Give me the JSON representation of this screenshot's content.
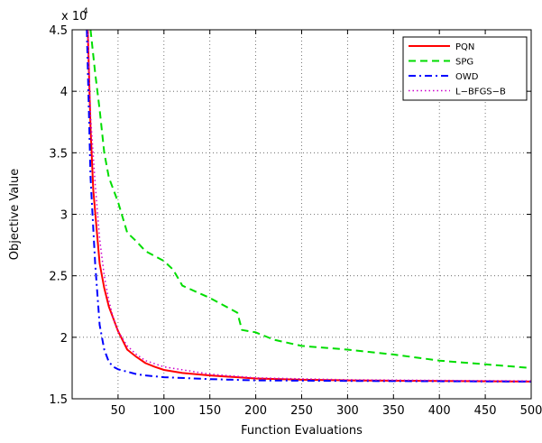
{
  "chart_data": {
    "type": "line",
    "title": "",
    "xlabel": "Function Evaluations",
    "ylabel": "Objective Value",
    "y_multiplier_label": "x 10",
    "y_multiplier_exponent": "4",
    "xlim": [
      0,
      500
    ],
    "ylim": [
      1.5,
      4.5
    ],
    "xticks": [
      50,
      100,
      150,
      200,
      250,
      300,
      350,
      400,
      450,
      500
    ],
    "xtick_labels": [
      "50",
      "100",
      "150",
      "200",
      "250",
      "300",
      "350",
      "400",
      "450",
      "500"
    ],
    "yticks": [
      1.5,
      2,
      2.5,
      3,
      3.5,
      4,
      4.5
    ],
    "ytick_labels": [
      "1.5",
      "2",
      "2.5",
      "3",
      "3.5",
      "4",
      "4.5"
    ],
    "grid": true,
    "legend_position": "top-right",
    "series": [
      {
        "name": "PQN",
        "color": "#ff0000",
        "dash": "solid",
        "x": [
          17,
          20,
          23,
          27,
          30,
          35,
          40,
          45,
          50,
          60,
          70,
          80,
          90,
          100,
          120,
          150,
          200,
          250,
          300,
          400,
          500
        ],
        "y": [
          4.5,
          3.7,
          3.2,
          2.85,
          2.6,
          2.4,
          2.25,
          2.15,
          2.05,
          1.9,
          1.84,
          1.79,
          1.76,
          1.735,
          1.71,
          1.69,
          1.665,
          1.655,
          1.65,
          1.645,
          1.64
        ]
      },
      {
        "name": "SPG",
        "color": "#00dd00",
        "dash": "dashed",
        "x": [
          20,
          25,
          30,
          35,
          40,
          50,
          60,
          70,
          80,
          100,
          110,
          120,
          150,
          180,
          185,
          200,
          220,
          250,
          300,
          350,
          400,
          450,
          500
        ],
        "y": [
          4.5,
          4.15,
          3.85,
          3.5,
          3.3,
          3.1,
          2.85,
          2.78,
          2.7,
          2.62,
          2.55,
          2.42,
          2.32,
          2.2,
          2.06,
          2.04,
          1.98,
          1.93,
          1.9,
          1.86,
          1.81,
          1.78,
          1.75
        ]
      },
      {
        "name": "OWD",
        "color": "#0000ff",
        "dash": "dashdot",
        "x": [
          16,
          20,
          25,
          30,
          35,
          40,
          45,
          50,
          60,
          70,
          80,
          100,
          150,
          200,
          300,
          500
        ],
        "y": [
          4.5,
          3.3,
          2.6,
          2.1,
          1.9,
          1.8,
          1.76,
          1.74,
          1.72,
          1.7,
          1.69,
          1.675,
          1.66,
          1.65,
          1.645,
          1.64
        ]
      },
      {
        "name": "L−BFGS−B",
        "color": "#cc00cc",
        "dash": "dotted",
        "x": [
          17,
          20,
          25,
          30,
          35,
          40,
          45,
          50,
          60,
          70,
          80,
          100,
          150,
          200,
          300,
          400,
          500
        ],
        "y": [
          4.5,
          3.8,
          3.25,
          2.8,
          2.5,
          2.3,
          2.15,
          2.05,
          1.93,
          1.86,
          1.81,
          1.76,
          1.7,
          1.67,
          1.655,
          1.65,
          1.645
        ]
      }
    ]
  }
}
